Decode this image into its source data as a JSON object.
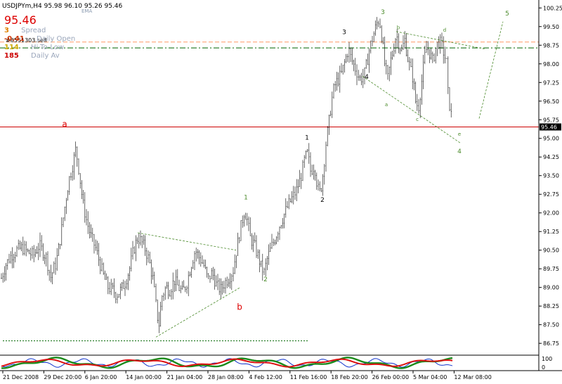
{
  "symbol_header": "USDJPYm,H4  95.98 96.10 95.26 95.46",
  "ema_label": "EMA",
  "info_panel": {
    "big_price": "95.46",
    "rows": [
      {
        "value": "3",
        "label": "Spread",
        "value_color": "#e08000"
      },
      {
        "value": "-0.41",
        "label": "Daily Open",
        "value_color": "#cc3300"
      },
      {
        "value": "114",
        "label": "Hi-To-Low",
        "value_color": "#ccaa00"
      },
      {
        "value": "185",
        "label": "Daily Av",
        "value_color": "#cc0000"
      }
    ],
    "overlay_text": "#8551303.sell"
  },
  "colors": {
    "candle": "#000000",
    "support_line": "#cc0000",
    "daily_open_line": "#ff9966",
    "level_line": "#006600",
    "wave_green": "#4a8a2a",
    "wave_red": "#dd0000",
    "price_tag_bg": "#000000",
    "osc_green": "#1a8a1a",
    "osc_red": "#dd1111",
    "osc_blue": "#1133cc"
  },
  "chart_data": {
    "type": "candlestick",
    "symbol": "USDJPYm",
    "timeframe": "H4",
    "last_price": "95.46",
    "ylim": [
      86.5,
      100.4
    ],
    "y_ticks": [
      "100.25",
      "99.50",
      "98.75",
      "98.00",
      "97.25",
      "96.50",
      "95.75",
      "95.00",
      "94.25",
      "93.50",
      "92.75",
      "92.00",
      "91.25",
      "90.50",
      "89.75",
      "89.00",
      "88.25",
      "87.50",
      "86.75"
    ],
    "x_ticks": [
      "21 Dec 2008",
      "29 Dec 20:00",
      "6 Jan 20:00",
      "14 Jan 00:00",
      "21 Jan 04:00",
      "28 Jan 08:00",
      "4 Feb 12:00",
      "11 Feb 16:00",
      "18 Feb 20:00",
      "26 Feb 00:00",
      "5 Mar 04:00",
      "12 Mar 08:00"
    ],
    "price_path": [
      [
        0,
        89.2
      ],
      [
        8,
        89.9
      ],
      [
        16,
        90.3
      ],
      [
        24,
        90.5
      ],
      [
        32,
        90.6
      ],
      [
        40,
        90.4
      ],
      [
        48,
        90.3
      ],
      [
        56,
        90.7
      ],
      [
        66,
        90.2
      ],
      [
        72,
        89.4
      ],
      [
        80,
        90.0
      ],
      [
        86,
        91.0
      ],
      [
        92,
        92.2
      ],
      [
        98,
        93.3
      ],
      [
        104,
        94.0
      ],
      [
        108,
        94.6
      ],
      [
        112,
        93.8
      ],
      [
        118,
        92.4
      ],
      [
        124,
        91.6
      ],
      [
        130,
        91.0
      ],
      [
        136,
        90.6
      ],
      [
        142,
        90.0
      ],
      [
        148,
        89.4
      ],
      [
        154,
        89.0
      ],
      [
        160,
        88.9
      ],
      [
        166,
        88.7
      ],
      [
        172,
        88.9
      ],
      [
        178,
        89.2
      ],
      [
        184,
        89.7
      ],
      [
        190,
        90.5
      ],
      [
        196,
        91.0
      ],
      [
        200,
        90.9
      ],
      [
        206,
        90.6
      ],
      [
        212,
        90.1
      ],
      [
        218,
        89.3
      ],
      [
        222,
        88.3
      ],
      [
        226,
        87.4
      ],
      [
        230,
        88.6
      ],
      [
        236,
        89.0
      ],
      [
        242,
        88.9
      ],
      [
        248,
        89.3
      ],
      [
        254,
        89.0
      ],
      [
        260,
        88.8
      ],
      [
        266,
        89.2
      ],
      [
        272,
        89.9
      ],
      [
        278,
        90.5
      ],
      [
        284,
        90.2
      ],
      [
        290,
        89.9
      ],
      [
        296,
        89.3
      ],
      [
        302,
        89.6
      ],
      [
        308,
        89.1
      ],
      [
        314,
        88.9
      ],
      [
        320,
        89.2
      ],
      [
        326,
        89.4
      ],
      [
        332,
        89.7
      ],
      [
        336,
        90.4
      ],
      [
        340,
        91.0
      ],
      [
        344,
        91.6
      ],
      [
        348,
        92.1
      ],
      [
        352,
        91.7
      ],
      [
        356,
        91.0
      ],
      [
        362,
        90.7
      ],
      [
        368,
        90.2
      ],
      [
        372,
        89.8
      ],
      [
        376,
        89.6
      ],
      [
        380,
        90.1
      ],
      [
        386,
        90.6
      ],
      [
        392,
        91.0
      ],
      [
        398,
        91.5
      ],
      [
        404,
        91.9
      ],
      [
        410,
        92.3
      ],
      [
        416,
        92.6
      ],
      [
        422,
        92.9
      ],
      [
        428,
        93.4
      ],
      [
        434,
        94.2
      ],
      [
        438,
        94.4
      ],
      [
        442,
        93.7
      ],
      [
        448,
        93.9
      ],
      [
        452,
        93.0
      ],
      [
        456,
        92.8
      ],
      [
        460,
        93.6
      ],
      [
        464,
        94.8
      ],
      [
        468,
        95.6
      ],
      [
        472,
        96.5
      ],
      [
        476,
        97.1
      ],
      [
        480,
        97.3
      ],
      [
        486,
        97.6
      ],
      [
        492,
        98.2
      ],
      [
        496,
        98.6
      ],
      [
        500,
        98.2
      ],
      [
        506,
        97.8
      ],
      [
        512,
        97.4
      ],
      [
        518,
        97.5
      ],
      [
        522,
        98.0
      ],
      [
        526,
        98.6
      ],
      [
        532,
        99.2
      ],
      [
        536,
        99.6
      ],
      [
        540,
        99.8
      ],
      [
        544,
        99.0
      ],
      [
        548,
        97.9
      ],
      [
        552,
        97.4
      ],
      [
        556,
        98.1
      ],
      [
        560,
        98.6
      ],
      [
        564,
        99.2
      ],
      [
        568,
        98.8
      ],
      [
        572,
        98.5
      ],
      [
        576,
        99.0
      ],
      [
        580,
        98.3
      ],
      [
        584,
        97.8
      ],
      [
        588,
        97.4
      ],
      [
        592,
        96.4
      ],
      [
        596,
        96.3
      ],
      [
        600,
        97.2
      ],
      [
        604,
        98.2
      ],
      [
        608,
        98.7
      ],
      [
        612,
        98.4
      ],
      [
        616,
        98.1
      ],
      [
        620,
        98.6
      ],
      [
        624,
        98.9
      ],
      [
        628,
        98.8
      ],
      [
        632,
        98.4
      ],
      [
        636,
        98.0
      ],
      [
        638,
        96.7
      ],
      [
        642,
        96.0
      ],
      [
        644,
        95.5
      ]
    ],
    "horizontal_levels": [
      {
        "price": 95.46,
        "style": "solid",
        "color": "#cc0000"
      },
      {
        "price": 98.88,
        "style": "dashed",
        "color": "#ff9966"
      },
      {
        "price": 98.64,
        "style": "dash-dot",
        "color": "#006600"
      },
      {
        "price": 86.85,
        "style": "dotted",
        "color": "#006600"
      }
    ],
    "wave_labels": [
      {
        "text": "a",
        "x": 92,
        "price": 95.46,
        "color": "#dd0000",
        "size": 12
      },
      {
        "text": "b",
        "x": 341,
        "price": 88.1,
        "color": "#dd0000",
        "size": 12
      },
      {
        "text": "1",
        "x": 350,
        "price": 92.55,
        "color": "#4a8a2a",
        "size": 9
      },
      {
        "text": "2",
        "x": 378,
        "price": 89.25,
        "color": "#4a8a2a",
        "size": 9
      },
      {
        "text": "1",
        "x": 437,
        "price": 94.95,
        "color": "#000000",
        "size": 9
      },
      {
        "text": "2",
        "x": 459,
        "price": 92.45,
        "color": "#000000",
        "size": 9
      },
      {
        "text": "3",
        "x": 490,
        "price": 99.2,
        "color": "#000000",
        "size": 9
      },
      {
        "text": "4",
        "x": 522,
        "price": 97.4,
        "color": "#000000",
        "size": 9
      },
      {
        "text": "3",
        "x": 545,
        "price": 100.0,
        "color": "#4a8a2a",
        "size": 9
      },
      {
        "text": "4",
        "x": 654,
        "price": 94.4,
        "color": "#4a8a2a",
        "size": 9
      },
      {
        "text": "5",
        "x": 722,
        "price": 99.95,
        "color": "#4a8a2a",
        "size": 9
      },
      {
        "text": "a",
        "x": 550,
        "price": 96.3,
        "color": "#4a8a2a",
        "size": 7
      },
      {
        "text": "b",
        "x": 567,
        "price": 99.4,
        "color": "#4a8a2a",
        "size": 7
      },
      {
        "text": "c",
        "x": 594,
        "price": 95.7,
        "color": "#4a8a2a",
        "size": 7
      },
      {
        "text": "d",
        "x": 633,
        "price": 99.3,
        "color": "#4a8a2a",
        "size": 7
      },
      {
        "text": "e",
        "x": 654,
        "price": 95.1,
        "color": "#4a8a2a",
        "size": 7
      }
    ],
    "trendlines": [
      {
        "from": [
          196,
          91.2
        ],
        "to": [
          336,
          90.5
        ],
        "color": "#4a8a2a"
      },
      {
        "from": [
          222,
          87.0
        ],
        "to": [
          342,
          89.0
        ],
        "color": "#4a8a2a"
      },
      {
        "from": [
          564,
          99.3
        ],
        "to": [
          690,
          98.6
        ],
        "color": "#4a8a2a"
      },
      {
        "from": [
          516,
          97.5
        ],
        "to": [
          656,
          94.8
        ],
        "color": "#4a8a2a"
      },
      {
        "from": [
          682,
          95.8
        ],
        "to": [
          716,
          99.7
        ],
        "color": "#4a8a2a"
      }
    ],
    "oscillator": {
      "scale_top": "100",
      "scale_bottom": "0"
    }
  }
}
